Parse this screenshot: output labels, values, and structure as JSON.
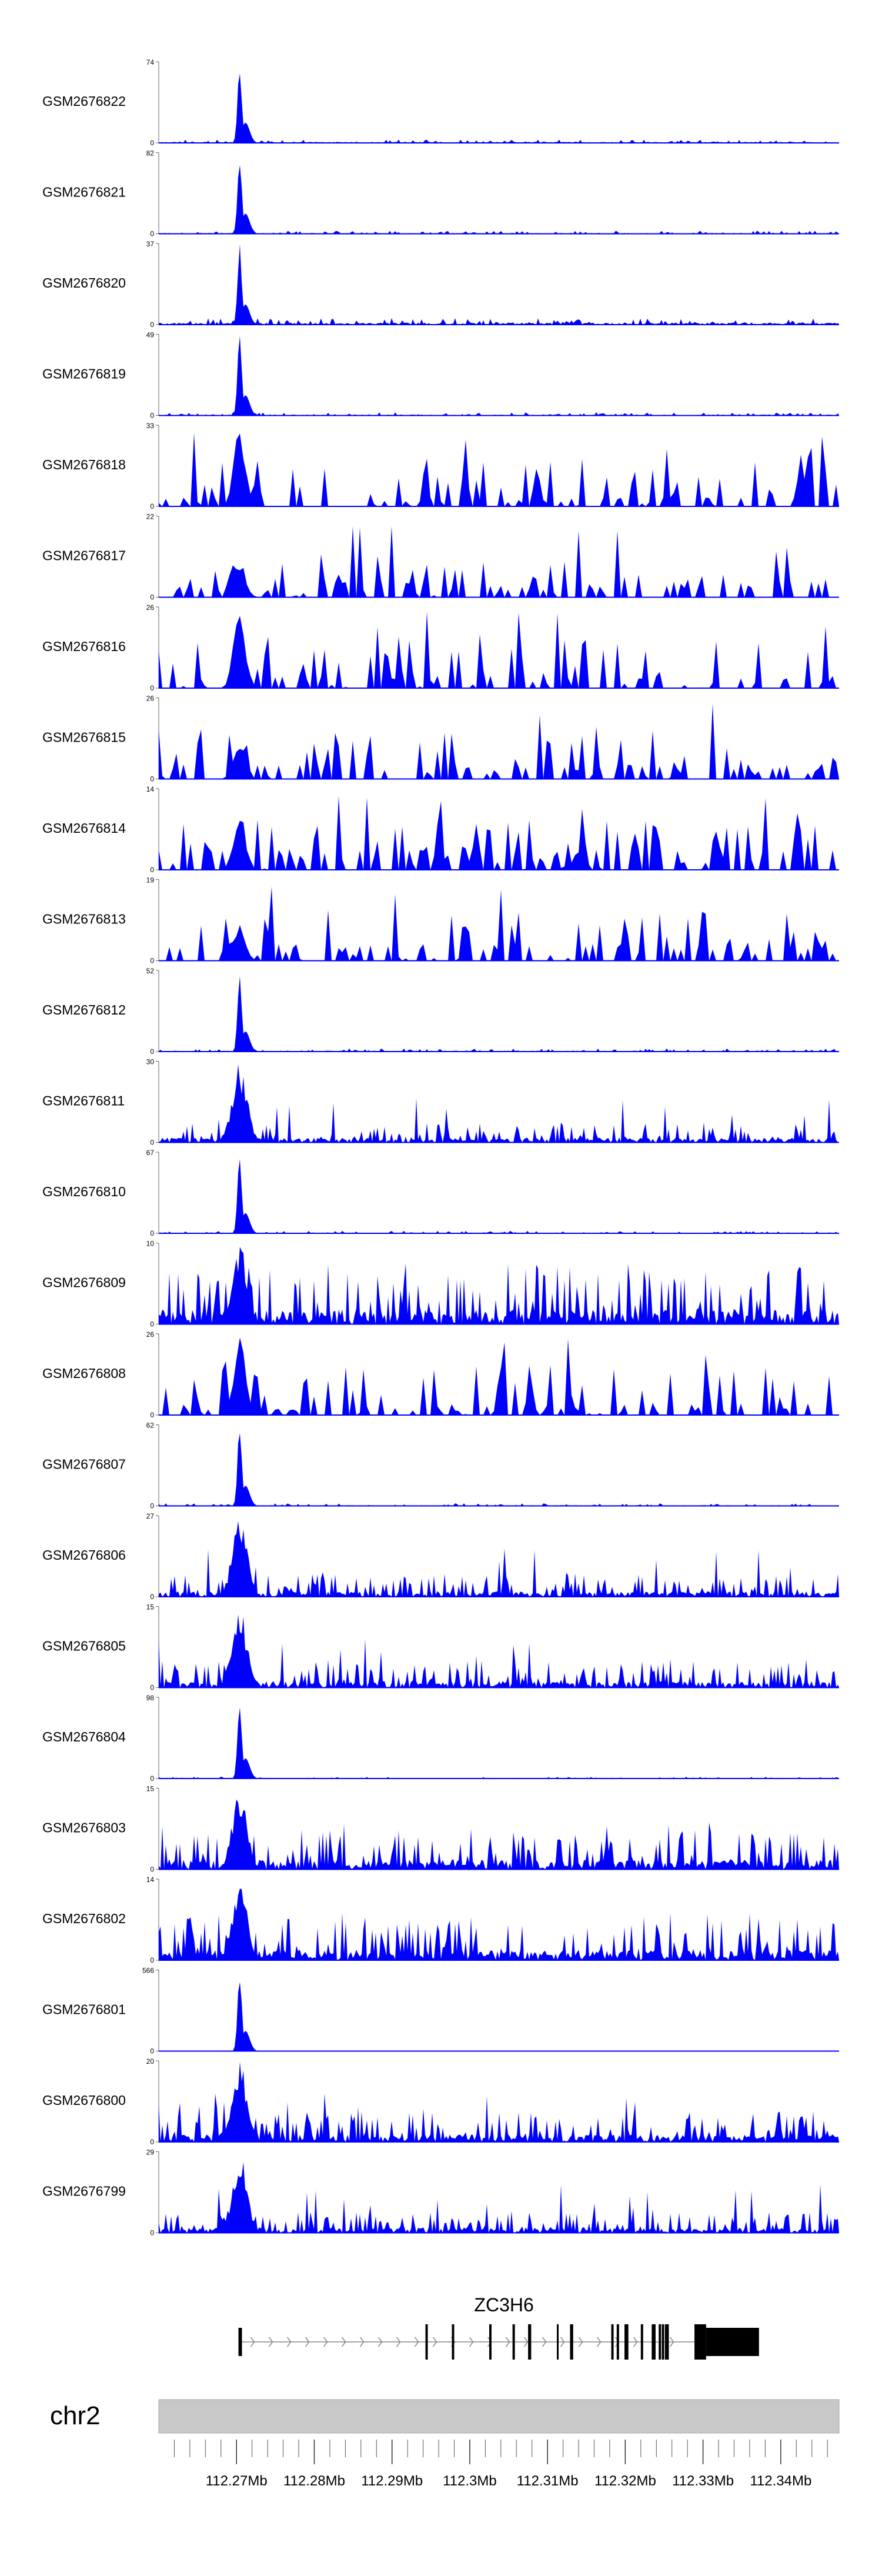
{
  "chart_data": {
    "type": "area",
    "title": "",
    "genome": {
      "chromosome": "chr2",
      "x_range_mb": [
        112.26,
        112.3475
      ],
      "tick_labels": [
        "112.27Mb",
        "112.28Mb",
        "112.29Mb",
        "112.3Mb",
        "112.31Mb",
        "112.32Mb",
        "112.33Mb",
        "112.34Mb"
      ],
      "tick_values_mb": [
        112.27,
        112.28,
        112.29,
        112.3,
        112.31,
        112.32,
        112.33,
        112.34
      ],
      "minor_tick_step_mb": 0.002
    },
    "gene": {
      "name": "ZC3H6",
      "strand": "+",
      "start_mb": 112.2704,
      "end_mb": 112.3372,
      "exons_mb": [
        [
          112.27025,
          112.2707
        ],
        [
          112.2943,
          112.2946
        ],
        [
          112.2977,
          112.298
        ],
        [
          112.3025,
          112.3028
        ],
        [
          112.3055,
          112.3058
        ],
        [
          112.3075,
          112.3079
        ],
        [
          112.3112,
          112.3114
        ],
        [
          112.3129,
          112.3133
        ],
        [
          112.3182,
          112.3185
        ],
        [
          112.3189,
          112.3192
        ],
        [
          112.3199,
          112.3204
        ],
        [
          112.322,
          112.3223
        ],
        [
          112.3234,
          112.3239
        ],
        [
          112.3243,
          112.3246
        ],
        [
          112.3247,
          112.325
        ],
        [
          112.3251,
          112.3256
        ],
        [
          112.3289,
          112.3304
        ],
        [
          112.3304,
          112.3372
        ]
      ]
    },
    "color": "#0000ff",
    "tracks": [
      {
        "name": "GSM2676822",
        "ymax": 74,
        "peak": 74,
        "bg": 3.0,
        "profile": "sharp"
      },
      {
        "name": "GSM2676821",
        "ymax": 82,
        "peak": 82,
        "bg": 3.0,
        "profile": "sharp"
      },
      {
        "name": "GSM2676820",
        "ymax": 37,
        "peak": 37,
        "bg": 3.0,
        "profile": "sharp"
      },
      {
        "name": "GSM2676819",
        "ymax": 49,
        "peak": 49,
        "bg": 2.0,
        "profile": "sharp"
      },
      {
        "name": "GSM2676818",
        "ymax": 33,
        "peak": 33,
        "bg": 4.0,
        "profile": "sparse"
      },
      {
        "name": "GSM2676817",
        "ymax": 22,
        "peak": 10,
        "bg": 5.0,
        "profile": "sparse"
      },
      {
        "name": "GSM2676816",
        "ymax": 26,
        "peak": 26,
        "bg": 4.0,
        "profile": "sparse"
      },
      {
        "name": "GSM2676815",
        "ymax": 26,
        "peak": 12,
        "bg": 5.0,
        "profile": "sparse"
      },
      {
        "name": "GSM2676814",
        "ymax": 14,
        "peak": 10,
        "bg": 4.0,
        "profile": "sparse"
      },
      {
        "name": "GSM2676813",
        "ymax": 19,
        "peak": 9,
        "bg": 4.0,
        "profile": "sparse"
      },
      {
        "name": "GSM2676812",
        "ymax": 52,
        "peak": 52,
        "bg": 2.0,
        "profile": "sharp"
      },
      {
        "name": "GSM2676811",
        "ymax": 30,
        "peak": 30,
        "bg": 3.0,
        "profile": "dense"
      },
      {
        "name": "GSM2676810",
        "ymax": 67,
        "peak": 67,
        "bg": 2.0,
        "profile": "sharp"
      },
      {
        "name": "GSM2676809",
        "ymax": 10,
        "peak": 10,
        "bg": 3.0,
        "profile": "dense"
      },
      {
        "name": "GSM2676808",
        "ymax": 26,
        "peak": 26,
        "bg": 4.0,
        "profile": "sparse"
      },
      {
        "name": "GSM2676807",
        "ymax": 62,
        "peak": 62,
        "bg": 2.0,
        "profile": "sharp"
      },
      {
        "name": "GSM2676806",
        "ymax": 27,
        "peak": 27,
        "bg": 3.0,
        "profile": "dense"
      },
      {
        "name": "GSM2676805",
        "ymax": 15,
        "peak": 15,
        "bg": 2.0,
        "profile": "dense"
      },
      {
        "name": "GSM2676804",
        "ymax": 98,
        "peak": 98,
        "bg": 2.0,
        "profile": "sharp"
      },
      {
        "name": "GSM2676803",
        "ymax": 15,
        "peak": 15,
        "bg": 3.0,
        "profile": "dense"
      },
      {
        "name": "GSM2676802",
        "ymax": 14,
        "peak": 14,
        "bg": 3.0,
        "profile": "dense"
      },
      {
        "name": "GSM2676801",
        "ymax": 566,
        "peak": 566,
        "bg": 2.0,
        "profile": "sharp"
      },
      {
        "name": "GSM2676800",
        "ymax": 20,
        "peak": 20,
        "bg": 3.0,
        "profile": "dense"
      },
      {
        "name": "GSM2676799",
        "ymax": 29,
        "peak": 29,
        "bg": 3.0,
        "profile": "dense"
      }
    ]
  }
}
